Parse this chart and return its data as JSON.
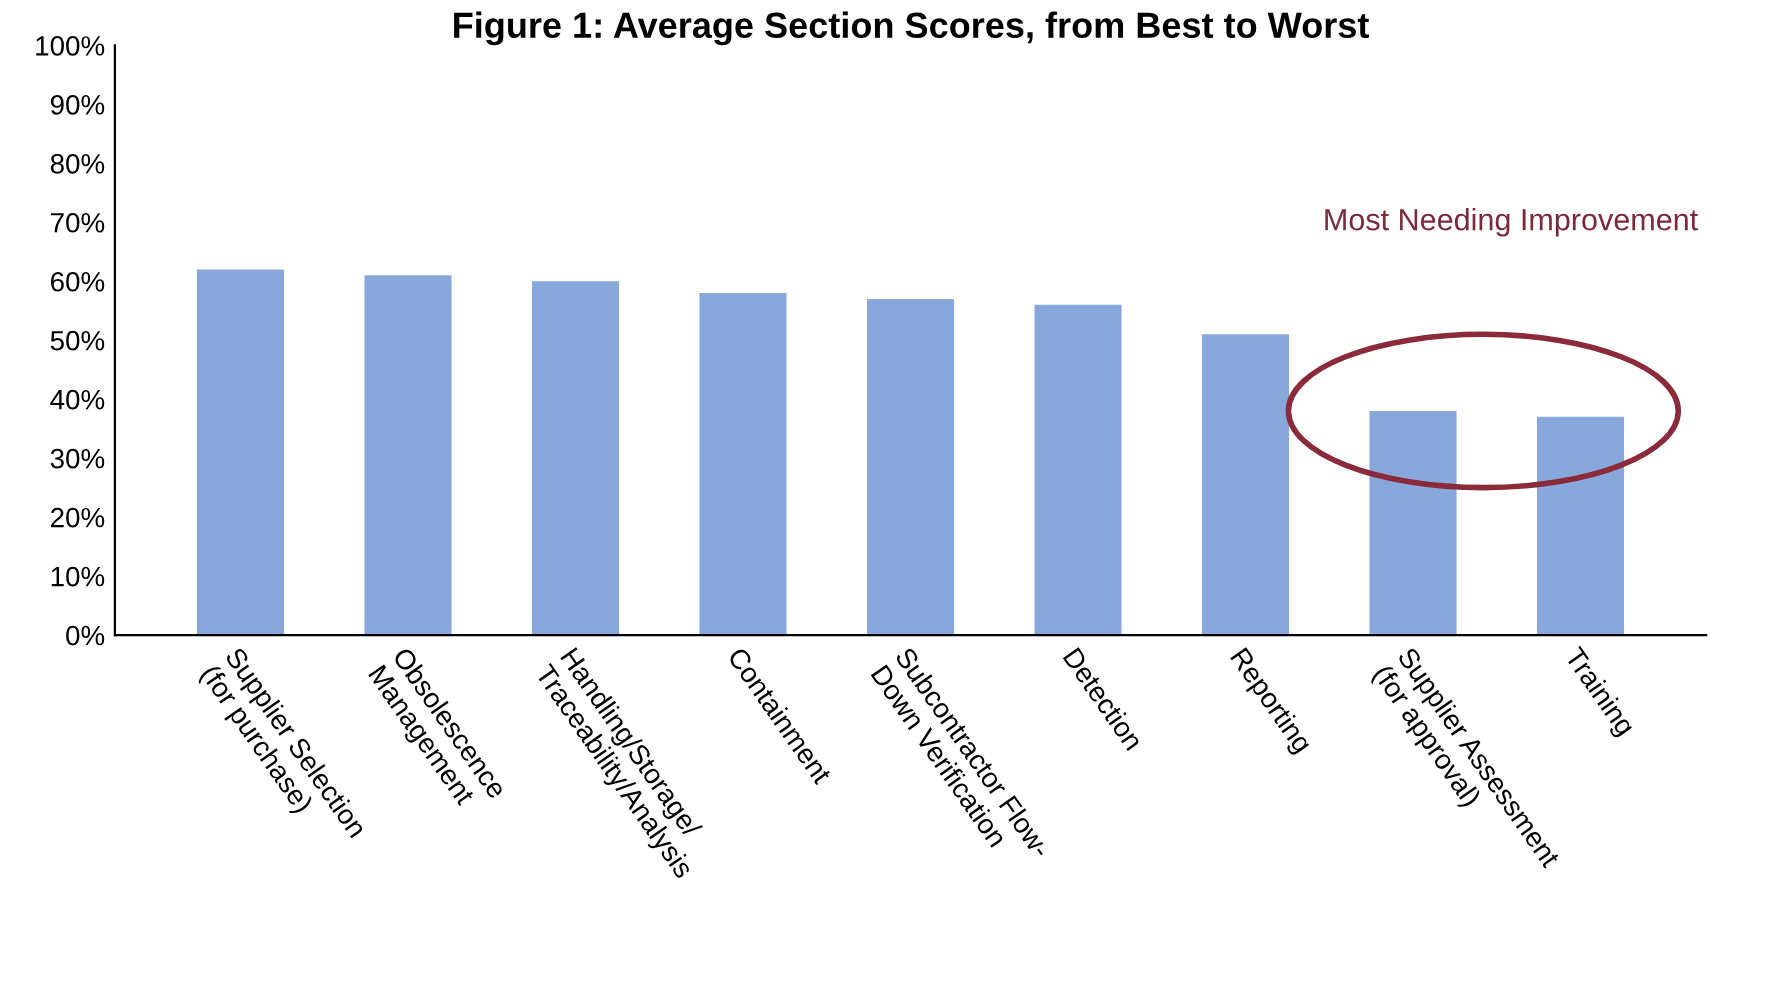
{
  "chart_data": {
    "type": "bar",
    "title": "Figure 1: Average Section Scores, from Best to Worst",
    "categories": [
      "Supplier Selection\n(for purchase)",
      "Obsolescence\nManagement",
      "Handling/Storage/\nTraceability/Analysis",
      "Containment",
      "Subcontractor Flow-\nDown Verification",
      "Detection",
      "Reporting",
      "Supplier Assessment\n(for approval)",
      "Training"
    ],
    "values": [
      62,
      61,
      60,
      58,
      57,
      56,
      51,
      38,
      37
    ],
    "color": "#88a8dc",
    "ylim": [
      0,
      100
    ],
    "yticks": [
      {
        "value": 0,
        "label": "0%"
      },
      {
        "value": 10,
        "label": "10%"
      },
      {
        "value": 20,
        "label": "20%"
      },
      {
        "value": 30,
        "label": "30%"
      },
      {
        "value": 40,
        "label": "40%"
      },
      {
        "value": 50,
        "label": "50%"
      },
      {
        "value": 60,
        "label": "60%"
      },
      {
        "value": 70,
        "label": "70%"
      },
      {
        "value": 80,
        "label": "80%"
      },
      {
        "value": 90,
        "label": "90%"
      },
      {
        "value": 100,
        "label": "100%"
      }
    ],
    "grid": false,
    "annotations": [
      "Most Needing Improvement"
    ]
  }
}
